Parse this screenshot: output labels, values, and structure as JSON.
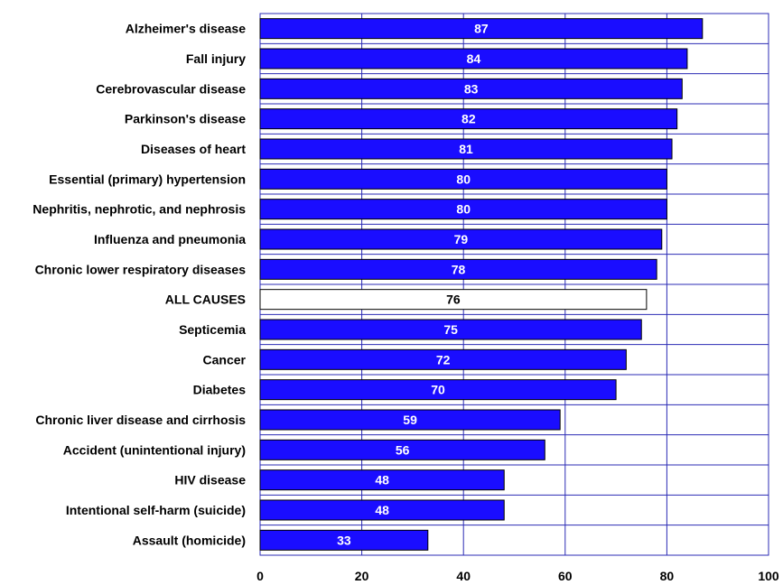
{
  "chart_data": {
    "type": "bar",
    "orientation": "horizontal",
    "title": "",
    "xlabel": "",
    "ylabel": "",
    "xlim": [
      0,
      100
    ],
    "xticks": [
      0,
      20,
      40,
      60,
      80,
      100
    ],
    "grid": true,
    "categories": [
      "Alzheimer's disease",
      "Fall injury",
      "Cerebrovascular disease",
      "Parkinson's disease",
      "Diseases of heart",
      "Essential (primary) hypertension",
      "Nephritis, nephrotic, and nephrosis",
      "Influenza and pneumonia",
      "Chronic lower respiratory diseases",
      "ALL CAUSES",
      "Septicemia",
      "Cancer",
      "Diabetes",
      "Chronic liver disease and cirrhosis",
      "Accident (unintentional injury)",
      "HIV disease",
      "Intentional self-harm (suicide)",
      "Assault (homicide)"
    ],
    "values": [
      87,
      84,
      83,
      82,
      81,
      80,
      80,
      79,
      78,
      76,
      75,
      72,
      70,
      59,
      56,
      48,
      48,
      33
    ],
    "highlight_category": "ALL CAUSES",
    "colors": {
      "bar": "#1a0dff",
      "bar_stroke": "#000000",
      "highlight_bar": "#ffffff",
      "grid": "#2b2bb5",
      "label_on_bar": "#ffffff",
      "label_on_highlight": "#000000"
    }
  }
}
